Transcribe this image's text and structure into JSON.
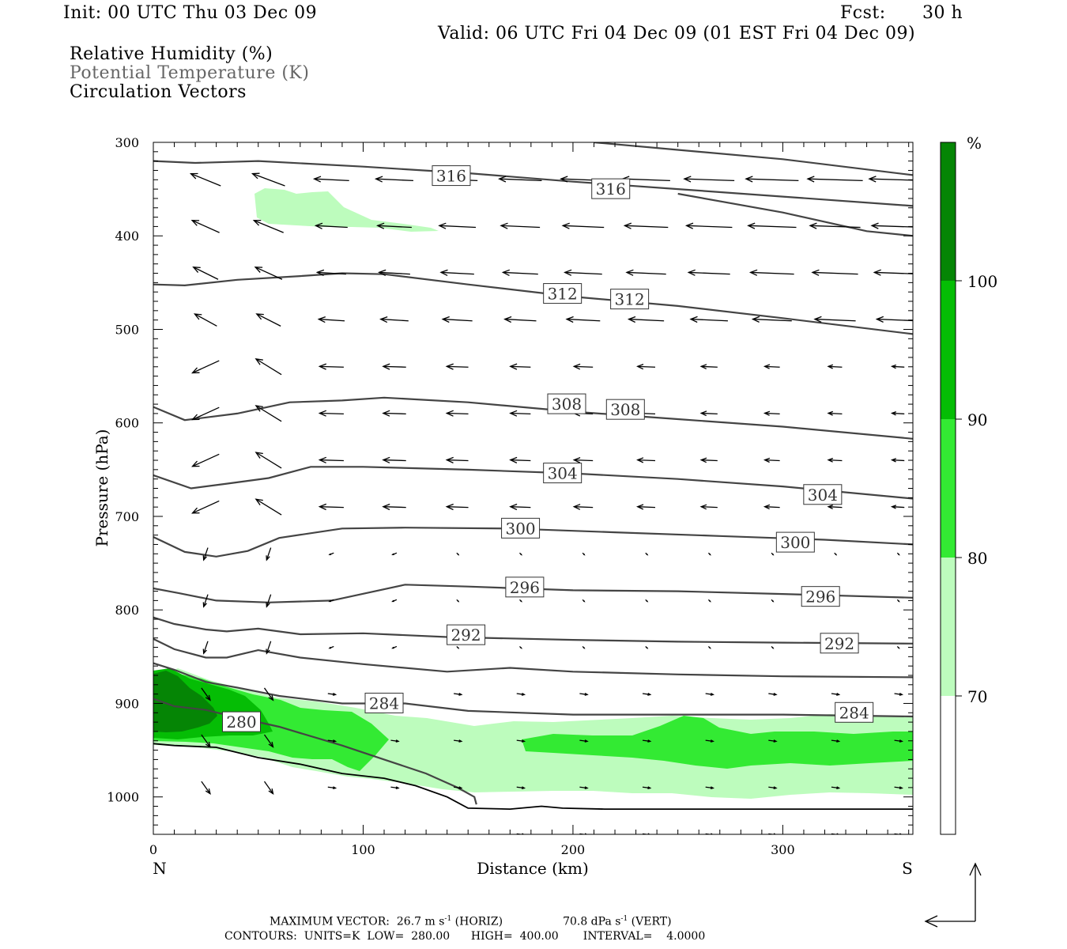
{
  "header": {
    "init": "Init: 00 UTC Thu 03 Dec 09",
    "fcst_label": "Fcst:",
    "fcst_value": "30 h",
    "valid": "Valid: 06 UTC Fri 04 Dec 09 (01 EST Fri 04 Dec 09)"
  },
  "legend_lines": [
    "Relative Humidity (%)",
    "Potential Temperature (K)",
    "Circulation Vectors"
  ],
  "footer": {
    "line1_a": "MAXIMUM VECTOR:  26.7 m s",
    "line1_b": " (HORIZ)",
    "line1_c": "70.8 dPa s",
    "line1_d": " (VERT)",
    "exp": "-1",
    "line2": "CONTOURS:  UNITS=K  LOW=  280.00      HIGH=  400.00       INTERVAL=    4.0000"
  },
  "colors": {
    "rh_70": "#bdfcbd",
    "rh_80": "#33ea33",
    "rh_90": "#05bd05",
    "rh_100": "#058505",
    "theta": "#444444"
  },
  "chart_data": {
    "type": "cross-section",
    "xlabel": "Distance (km)",
    "ylabel": "Pressure (hPa)",
    "xlim": [
      0,
      362
    ],
    "ylim": [
      1040,
      300
    ],
    "x_ticks": [
      "0",
      "100",
      "200",
      "300"
    ],
    "y_ticks": [
      "300",
      "400",
      "500",
      "600",
      "700",
      "800",
      "900",
      "1000"
    ],
    "x_end_labels": {
      "left": "N",
      "right": "S"
    },
    "colorbar": {
      "unit": "%",
      "levels": [
        "70",
        "80",
        "90",
        "100"
      ],
      "colors": [
        "#ffffff",
        "#bdfcbd",
        "#33ea33",
        "#05bd05",
        "#058505"
      ]
    },
    "theta_contours": [
      {
        "label": "316",
        "points": [
          [
            0,
            320
          ],
          [
            20,
            322
          ],
          [
            50,
            320
          ],
          [
            100,
            326
          ],
          [
            150,
            333
          ],
          [
            200,
            342
          ],
          [
            250,
            350
          ],
          [
            300,
            358
          ],
          [
            362,
            368
          ]
        ],
        "label_pos": [
          [
            142,
            336
          ],
          [
            218,
            350
          ]
        ]
      },
      {
        "label": "",
        "points": [
          [
            210,
            300
          ],
          [
            250,
            308
          ],
          [
            300,
            318
          ],
          [
            362,
            335
          ]
        ],
        "label_pos": []
      },
      {
        "label": "",
        "points": [
          [
            250,
            355
          ],
          [
            300,
            375
          ],
          [
            340,
            395
          ],
          [
            362,
            400
          ]
        ],
        "label_pos": []
      },
      {
        "label": "312",
        "points": [
          [
            0,
            452
          ],
          [
            15,
            453
          ],
          [
            40,
            447
          ],
          [
            70,
            443
          ],
          [
            90,
            440
          ],
          [
            110,
            441
          ],
          [
            150,
            452
          ],
          [
            200,
            465
          ],
          [
            250,
            475
          ],
          [
            300,
            488
          ],
          [
            362,
            505
          ]
        ],
        "label_pos": [
          [
            195,
            462
          ],
          [
            227,
            468
          ]
        ]
      },
      {
        "label": "308",
        "points": [
          [
            0,
            583
          ],
          [
            15,
            597
          ],
          [
            40,
            590
          ],
          [
            65,
            578
          ],
          [
            90,
            576
          ],
          [
            110,
            573
          ],
          [
            150,
            578
          ],
          [
            200,
            588
          ],
          [
            250,
            596
          ],
          [
            300,
            604
          ],
          [
            362,
            617
          ]
        ],
        "label_pos": [
          [
            197,
            580
          ],
          [
            225,
            586
          ]
        ]
      },
      {
        "label": "304",
        "points": [
          [
            0,
            656
          ],
          [
            18,
            670
          ],
          [
            35,
            665
          ],
          [
            55,
            659
          ],
          [
            75,
            647
          ],
          [
            100,
            647
          ],
          [
            150,
            650
          ],
          [
            200,
            654
          ],
          [
            250,
            660
          ],
          [
            300,
            668
          ],
          [
            362,
            681
          ]
        ],
        "label_pos": [
          [
            195,
            654
          ],
          [
            319,
            677
          ]
        ]
      },
      {
        "label": "300",
        "points": [
          [
            0,
            722
          ],
          [
            15,
            738
          ],
          [
            30,
            743
          ],
          [
            45,
            737
          ],
          [
            60,
            723
          ],
          [
            90,
            713
          ],
          [
            120,
            712
          ],
          [
            170,
            713
          ],
          [
            220,
            717
          ],
          [
            270,
            721
          ],
          [
            320,
            725
          ],
          [
            362,
            730
          ]
        ],
        "label_pos": [
          [
            175,
            713
          ],
          [
            306,
            728
          ]
        ]
      },
      {
        "label": "296",
        "points": [
          [
            0,
            777
          ],
          [
            12,
            782
          ],
          [
            30,
            790
          ],
          [
            55,
            792
          ],
          [
            85,
            790
          ],
          [
            120,
            773
          ],
          [
            150,
            775
          ],
          [
            200,
            779
          ],
          [
            250,
            780
          ],
          [
            300,
            783
          ],
          [
            362,
            787
          ]
        ],
        "label_pos": [
          [
            177,
            776
          ],
          [
            318,
            786
          ]
        ]
      },
      {
        "label": "292",
        "points": [
          [
            0,
            808
          ],
          [
            10,
            815
          ],
          [
            25,
            821
          ],
          [
            35,
            823
          ],
          [
            50,
            820
          ],
          [
            70,
            826
          ],
          [
            100,
            825
          ],
          [
            140,
            829
          ],
          [
            200,
            832
          ],
          [
            250,
            834
          ],
          [
            300,
            835
          ],
          [
            362,
            836
          ]
        ],
        "label_pos": [
          [
            149,
            827
          ],
          [
            327,
            836
          ]
        ]
      },
      {
        "label": "",
        "points": [
          [
            0,
            831
          ],
          [
            10,
            842
          ],
          [
            25,
            851
          ],
          [
            35,
            851
          ],
          [
            50,
            843
          ],
          [
            70,
            851
          ],
          [
            100,
            858
          ],
          [
            140,
            866
          ],
          [
            170,
            862
          ],
          [
            200,
            866
          ],
          [
            250,
            869
          ],
          [
            300,
            871
          ],
          [
            362,
            872
          ]
        ],
        "label_pos": []
      },
      {
        "label": "284",
        "points": [
          [
            0,
            857
          ],
          [
            10,
            864
          ],
          [
            25,
            877
          ],
          [
            40,
            883
          ],
          [
            60,
            892
          ],
          [
            90,
            900
          ],
          [
            120,
            900
          ],
          [
            150,
            908
          ],
          [
            200,
            912
          ],
          [
            260,
            912
          ],
          [
            300,
            912
          ],
          [
            362,
            914
          ]
        ],
        "label_pos": [
          [
            110,
            900
          ],
          [
            334,
            910
          ]
        ]
      },
      {
        "label": "280",
        "points": [
          [
            0,
            895
          ],
          [
            10,
            903
          ],
          [
            25,
            907
          ],
          [
            40,
            915
          ],
          [
            60,
            925
          ],
          [
            90,
            945
          ],
          [
            110,
            960
          ],
          [
            130,
            975
          ],
          [
            145,
            990
          ],
          [
            153,
            1000
          ],
          [
            154,
            1008
          ]
        ],
        "label_pos": [
          [
            42,
            920
          ]
        ]
      }
    ],
    "terrain_points": [
      [
        0,
        943
      ],
      [
        10,
        945
      ],
      [
        30,
        947
      ],
      [
        50,
        958
      ],
      [
        70,
        965
      ],
      [
        90,
        975
      ],
      [
        110,
        980
      ],
      [
        125,
        988
      ],
      [
        140,
        1000
      ],
      [
        150,
        1012
      ],
      [
        170,
        1013
      ],
      [
        185,
        1010
      ],
      [
        195,
        1012
      ],
      [
        215,
        1013
      ],
      [
        260,
        1013
      ],
      [
        362,
        1013
      ]
    ],
    "rh_80_max_km": 25
  }
}
